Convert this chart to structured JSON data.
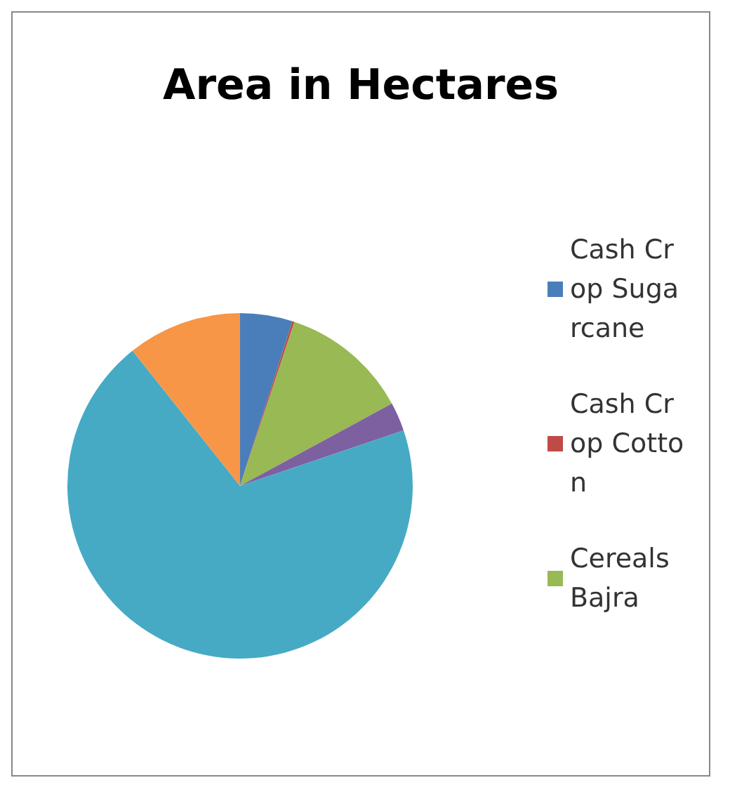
{
  "chart_data": {
    "type": "pie",
    "title": "Area in Hectares",
    "categories": [
      "Cash Crop Sugarcane",
      "Cash Crop Cotton",
      "Cereals Bajra",
      null,
      null,
      null
    ],
    "values": [
      4.9,
      0.2,
      12.0,
      2.7,
      69.5,
      10.7
    ],
    "colors": [
      "#4a7ebb",
      "#be4b48",
      "#98b954",
      "#7d60a0",
      "#46aac5",
      "#f79646"
    ],
    "legend": "right"
  }
}
